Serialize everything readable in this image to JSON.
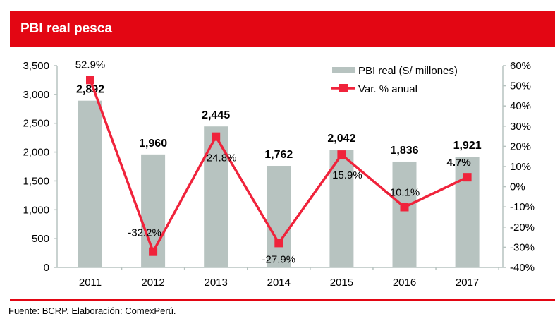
{
  "header": {
    "title": "PBI real pesca"
  },
  "footer": {
    "source": "Fuente: BCRP. Elaboración: ComexPerú."
  },
  "chart_data": {
    "type": "bar+line",
    "title": "PBI real pesca",
    "categories": [
      "2011",
      "2012",
      "2013",
      "2014",
      "2015",
      "2016",
      "2017"
    ],
    "series": [
      {
        "name": "PBI real (S/ millones)",
        "type": "bar",
        "axis": "left",
        "values": [
          2892,
          1960,
          2445,
          1762,
          2042,
          1836,
          1921
        ],
        "labels": [
          "2,892",
          "1,960",
          "2,445",
          "1,762",
          "2,042",
          "1,836",
          "1,921"
        ],
        "color": "#b7c3c0"
      },
      {
        "name": "Var. % anual",
        "type": "line",
        "axis": "right",
        "values": [
          52.9,
          -32.2,
          24.8,
          -27.9,
          15.9,
          -10.1,
          4.7
        ],
        "labels": [
          "52.9%",
          "-32.2%",
          "24.8%",
          "-27.9%",
          "15.9%",
          "-10.1%",
          "4.7%"
        ],
        "color": "#f0233b"
      }
    ],
    "left_axis": {
      "range": [
        0,
        3500
      ],
      "ticks": [
        "0",
        "500",
        "1,000",
        "1,500",
        "2,000",
        "2,500",
        "3,000",
        "3,500"
      ]
    },
    "right_axis": {
      "range": [
        -40,
        60
      ],
      "ticks": [
        "-40%",
        "-30%",
        "-20%",
        "-10%",
        "0%",
        "10%",
        "20%",
        "30%",
        "40%",
        "50%",
        "60%"
      ]
    },
    "legend": "top-right",
    "grid": false
  }
}
